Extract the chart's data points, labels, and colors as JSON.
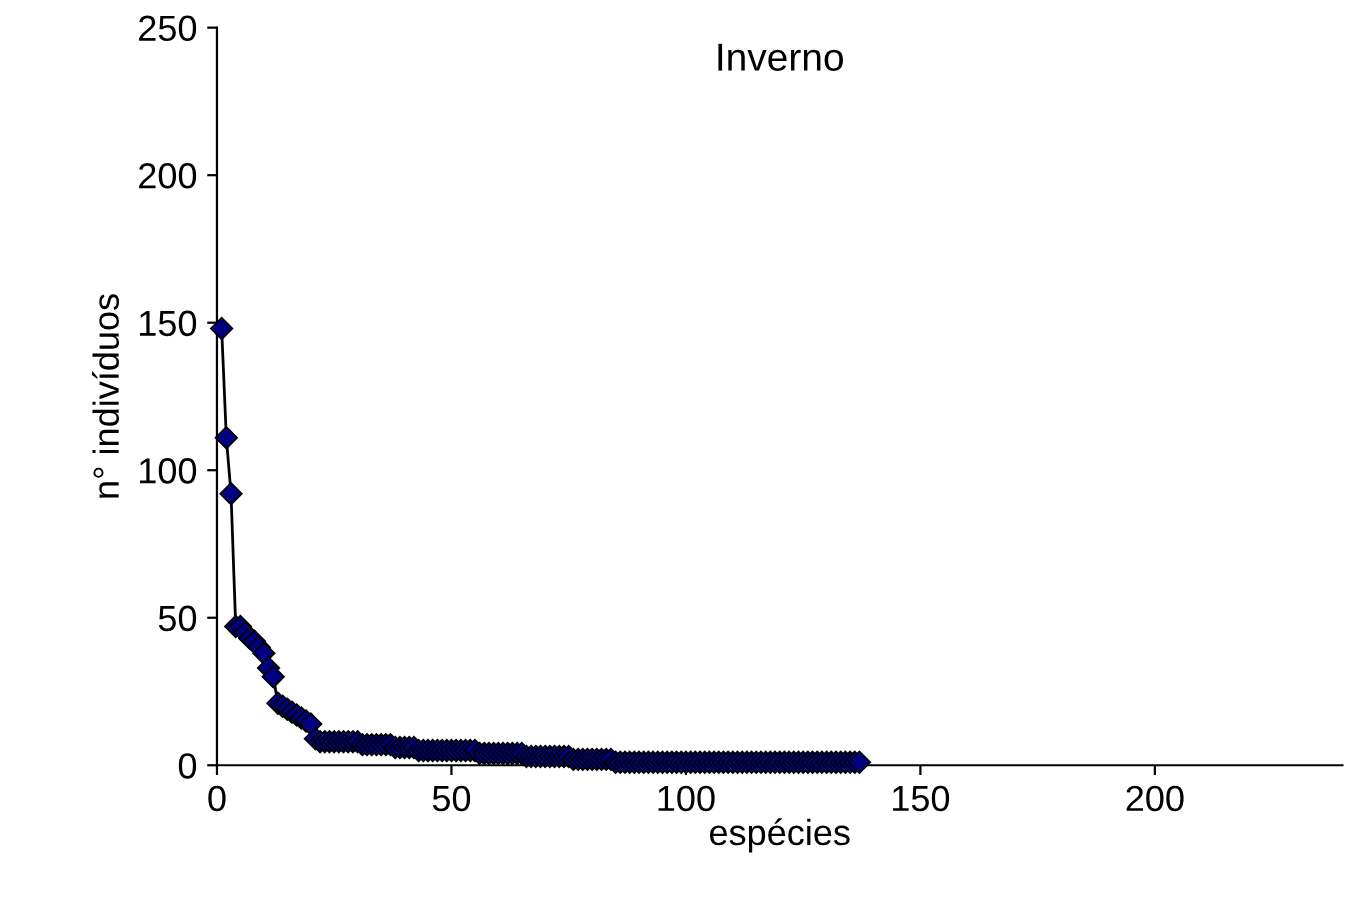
{
  "chart_data": {
    "type": "line",
    "title": "Inverno",
    "xlabel": "espécies",
    "ylabel": "n° indivíduos",
    "x": [
      1,
      2,
      3,
      4,
      5,
      6,
      7,
      8,
      9,
      10,
      11,
      12,
      13,
      14,
      15,
      16,
      17,
      18,
      19,
      20,
      21,
      22,
      23,
      24,
      25,
      26,
      27,
      28,
      29,
      30,
      31,
      32,
      33,
      34,
      35,
      36,
      37,
      38,
      39,
      40,
      41,
      42,
      43,
      44,
      45,
      46,
      47,
      48,
      49,
      50,
      51,
      52,
      53,
      54,
      55,
      56,
      57,
      58,
      59,
      60,
      61,
      62,
      63,
      64,
      65,
      66,
      67,
      68,
      69,
      70,
      71,
      72,
      73,
      74,
      75,
      76,
      77,
      78,
      79,
      80,
      81,
      82,
      83,
      84,
      85,
      86,
      87,
      88,
      89,
      90,
      91,
      92,
      93,
      94,
      95,
      96,
      97,
      98,
      99,
      100,
      101,
      102,
      103,
      104,
      105,
      106,
      107,
      108,
      109,
      110,
      111,
      112,
      113,
      114,
      115,
      116,
      117,
      118,
      119,
      120,
      121,
      122,
      123,
      124,
      125,
      126,
      127,
      128,
      129,
      130,
      131,
      132,
      133,
      134,
      135,
      136,
      137
    ],
    "series": [
      {
        "color": "#000080",
        "values": [
          148,
          111,
          92,
          47,
          47,
          45,
          43,
          42,
          40,
          38,
          33,
          30,
          21,
          20,
          19,
          18,
          17,
          16,
          15,
          14,
          9,
          8,
          8,
          8,
          8,
          8,
          8,
          8,
          8,
          8,
          7,
          7,
          7,
          7,
          7,
          7,
          7,
          6,
          6,
          6,
          6,
          6,
          5,
          5,
          5,
          5,
          5,
          5,
          5,
          5,
          5,
          5,
          5,
          5,
          5,
          4,
          4,
          4,
          4,
          4,
          4,
          4,
          4,
          4,
          4,
          3,
          3,
          3,
          3,
          3,
          3,
          3,
          3,
          3,
          3,
          2,
          2,
          2,
          2,
          2,
          2,
          2,
          2,
          2,
          1,
          1,
          1,
          1,
          1,
          1,
          1,
          1,
          1,
          1,
          1,
          1,
          1,
          1,
          1,
          1,
          1,
          1,
          1,
          1,
          1,
          1,
          1,
          1,
          1,
          1,
          1,
          1,
          1,
          1,
          1,
          1,
          1,
          1,
          1,
          1,
          1,
          1,
          1,
          1,
          1,
          1,
          1,
          1,
          1,
          1,
          1,
          1,
          1,
          1,
          1,
          1,
          1
        ]
      }
    ],
    "xlim": [
      0,
      240
    ],
    "xticks": [
      0,
      50,
      100,
      150,
      200
    ],
    "ylim": [
      0,
      250
    ],
    "yticks": [
      0,
      50,
      100,
      150,
      200,
      250
    ],
    "marker": "diamond",
    "line_style": "solid",
    "grid": false,
    "legend": false
  }
}
